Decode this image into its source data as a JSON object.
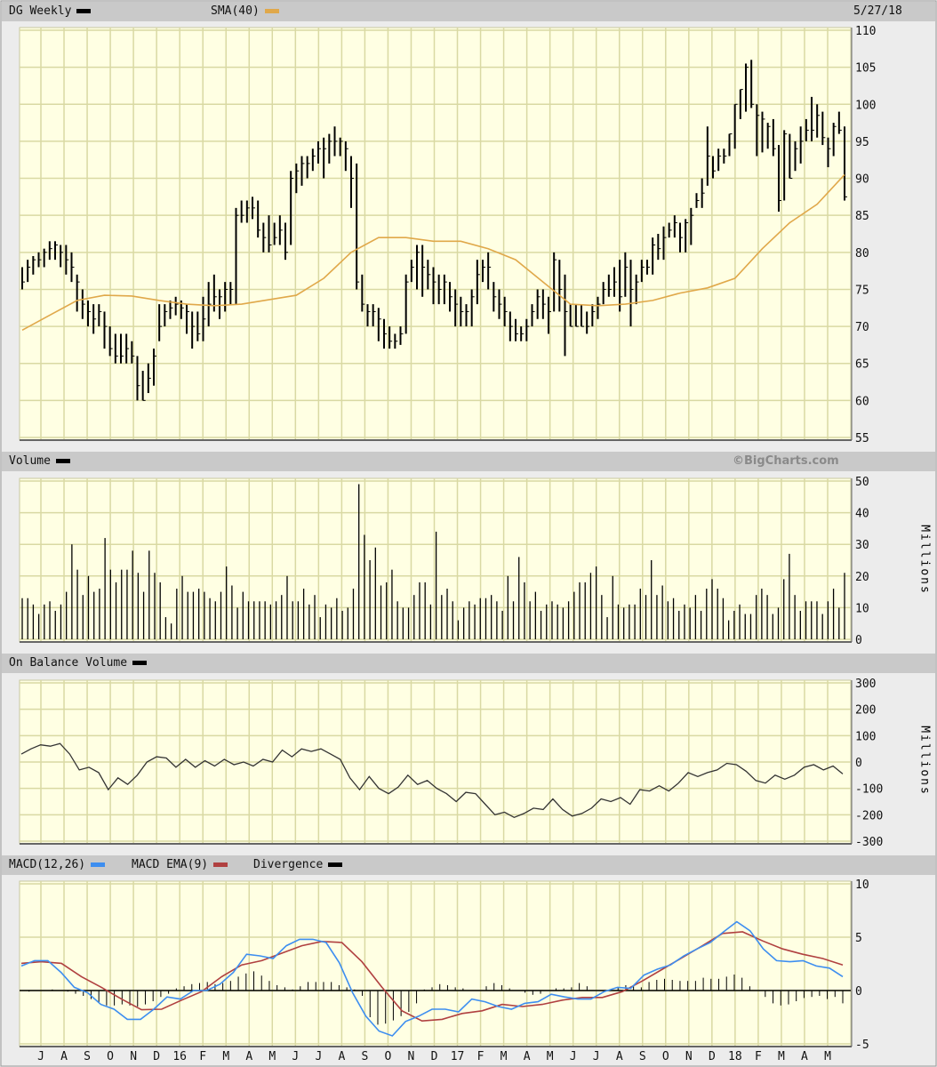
{
  "header": {
    "title": "DG Weekly",
    "sma_label": "SMA(40)",
    "date": "5/27/18"
  },
  "volume_header": {
    "title": "Volume",
    "credit": "©BigCharts.com",
    "unit": "Millions"
  },
  "obv_header": {
    "title": "On Balance Volume",
    "unit": "Millions"
  },
  "macd_header": {
    "macd": "MACD(12,26)",
    "ema": "MACD EMA(9)",
    "divergence": "Divergence"
  },
  "colors": {
    "price": "#000000",
    "sma": "#e0a84a",
    "macd": "#3d8ef0",
    "ema": "#b04040",
    "divergence": "#000000",
    "plot_bg": "#ffffe3",
    "grid": "#d9d9a3"
  },
  "x_ticks": [
    "J",
    "A",
    "S",
    "O",
    "N",
    "D",
    "16",
    "F",
    "M",
    "A",
    "M",
    "J",
    "J",
    "A",
    "S",
    "O",
    "N",
    "D",
    "17",
    "F",
    "M",
    "A",
    "M",
    "J",
    "J",
    "A",
    "S",
    "O",
    "N",
    "D",
    "18",
    "F",
    "M",
    "A",
    "M"
  ],
  "chart_data": [
    {
      "type": "ohlc-bar",
      "title": "DG Weekly",
      "interval": "weekly",
      "ylim": [
        55,
        110
      ],
      "yticks": [
        55,
        60,
        65,
        70,
        75,
        80,
        85,
        90,
        95,
        100,
        105,
        110
      ],
      "grid": true,
      "bars_hlc": [
        [
          78,
          75,
          76
        ],
        [
          79,
          76,
          78
        ],
        [
          79.5,
          77,
          79
        ],
        [
          80,
          78,
          79
        ],
        [
          80.5,
          78,
          80
        ],
        [
          81.5,
          79,
          80.5
        ],
        [
          81.5,
          79,
          81
        ],
        [
          81,
          78,
          80
        ],
        [
          81,
          77,
          79
        ],
        [
          80,
          76,
          78
        ],
        [
          77,
          72,
          76
        ],
        [
          75,
          71,
          73
        ],
        [
          73.5,
          70,
          72
        ],
        [
          73,
          69,
          71
        ],
        [
          73,
          70,
          72
        ],
        [
          72,
          67,
          70
        ],
        [
          70,
          66,
          67
        ],
        [
          69,
          65,
          66
        ],
        [
          69,
          65,
          66
        ],
        [
          69,
          65,
          67
        ],
        [
          68,
          65,
          66
        ],
        [
          66,
          60,
          62
        ],
        [
          64,
          60,
          60
        ],
        [
          65,
          61,
          63
        ],
        [
          67,
          62,
          66
        ],
        [
          73,
          68,
          70
        ],
        [
          73,
          70,
          72
        ],
        [
          73.5,
          71,
          72.5
        ],
        [
          74,
          71.5,
          73
        ],
        [
          73.5,
          71,
          72.5
        ],
        [
          73,
          69,
          72
        ],
        [
          72,
          67,
          70
        ],
        [
          72,
          68,
          69
        ],
        [
          74,
          68,
          71
        ],
        [
          76,
          70,
          73
        ],
        [
          77,
          72,
          74
        ],
        [
          75,
          71,
          74
        ],
        [
          76,
          72,
          75
        ],
        [
          76,
          73,
          75
        ],
        [
          86,
          73,
          85
        ],
        [
          87,
          84,
          85
        ],
        [
          87,
          84,
          86
        ],
        [
          87.5,
          84.5,
          86
        ],
        [
          87,
          82,
          83
        ],
        [
          84,
          80,
          82
        ],
        [
          85,
          80,
          81
        ],
        [
          84,
          81,
          82
        ],
        [
          85,
          81,
          83
        ],
        [
          84,
          79,
          80
        ],
        [
          91,
          81,
          90
        ],
        [
          92,
          88,
          91
        ],
        [
          93,
          89,
          92
        ],
        [
          93,
          90,
          92
        ],
        [
          94,
          91,
          93
        ],
        [
          95,
          92,
          94
        ],
        [
          95.5,
          90,
          94
        ],
        [
          96,
          92,
          95
        ],
        [
          97,
          93,
          95
        ],
        [
          95.5,
          93,
          95
        ],
        [
          95,
          91,
          94
        ],
        [
          93,
          86,
          90
        ],
        [
          92,
          75,
          76
        ],
        [
          77,
          72,
          73
        ],
        [
          73,
          70,
          72
        ],
        [
          73,
          70,
          72
        ],
        [
          72.5,
          68,
          71
        ],
        [
          71,
          67,
          69
        ],
        [
          70,
          67,
          68
        ],
        [
          69,
          67,
          68
        ],
        [
          70,
          67.5,
          69
        ],
        [
          77,
          69,
          76
        ],
        [
          79,
          76,
          78
        ],
        [
          81,
          75,
          80
        ],
        [
          81,
          74,
          78
        ],
        [
          79,
          75,
          77
        ],
        [
          78,
          73,
          76
        ],
        [
          77,
          73,
          75
        ],
        [
          77,
          73,
          76
        ],
        [
          76,
          72,
          74
        ],
        [
          75,
          70,
          73
        ],
        [
          74,
          70,
          72
        ],
        [
          73,
          70,
          72
        ],
        [
          75,
          70,
          74
        ],
        [
          79,
          73,
          77
        ],
        [
          79,
          76,
          78
        ],
        [
          80,
          75,
          78
        ],
        [
          76,
          72,
          74
        ],
        [
          75,
          71,
          73
        ],
        [
          74,
          70,
          72
        ],
        [
          72,
          68,
          70
        ],
        [
          71,
          68,
          69
        ],
        [
          70,
          68,
          69
        ],
        [
          71,
          68,
          70
        ],
        [
          73,
          70,
          72
        ],
        [
          75,
          71,
          74
        ],
        [
          75,
          71,
          73
        ],
        [
          74,
          69,
          72
        ],
        [
          80,
          72,
          79
        ],
        [
          79,
          72,
          75
        ],
        [
          77,
          66,
          72
        ],
        [
          73,
          70,
          70
        ],
        [
          73,
          70,
          70
        ],
        [
          73,
          70,
          70
        ],
        [
          72,
          69,
          70
        ],
        [
          73,
          70,
          72
        ],
        [
          74,
          71,
          73
        ],
        [
          76,
          73,
          75
        ],
        [
          77,
          74,
          75
        ],
        [
          78,
          74,
          76
        ],
        [
          79,
          72,
          74
        ],
        [
          80,
          74,
          78
        ],
        [
          79,
          70,
          75
        ],
        [
          77,
          73,
          76
        ],
        [
          79,
          76,
          78
        ],
        [
          79,
          77,
          78
        ],
        [
          82,
          77,
          81
        ],
        [
          82.5,
          79,
          80.5
        ],
        [
          83.5,
          79,
          82
        ],
        [
          84,
          82,
          83
        ],
        [
          85,
          82,
          84
        ],
        [
          84,
          80,
          82
        ],
        [
          84.5,
          80,
          84
        ],
        [
          86,
          81,
          85
        ],
        [
          88,
          86,
          87
        ],
        [
          90,
          86,
          88
        ],
        [
          97,
          89,
          93
        ],
        [
          93,
          90,
          91
        ],
        [
          94,
          91,
          93
        ],
        [
          94,
          92,
          93
        ],
        [
          96,
          93,
          96
        ],
        [
          100,
          94,
          100
        ],
        [
          102,
          98,
          102
        ],
        [
          105.5,
          99,
          105
        ],
        [
          106,
          99.5,
          100
        ],
        [
          100,
          93,
          98.5
        ],
        [
          99,
          93.5,
          98
        ],
        [
          97.5,
          94,
          97
        ],
        [
          98,
          93,
          94
        ],
        [
          94.5,
          85.5,
          87
        ],
        [
          96.5,
          87,
          96
        ],
        [
          96,
          90,
          90
        ],
        [
          95,
          91,
          94
        ],
        [
          97,
          92,
          95
        ],
        [
          98,
          95,
          96.5
        ],
        [
          101,
          95,
          96.5
        ],
        [
          100,
          95.5,
          98.5
        ],
        [
          99,
          94.5,
          95.5
        ],
        [
          95.5,
          91.5,
          94
        ],
        [
          97.5,
          93,
          97
        ],
        [
          99,
          96,
          96.5
        ],
        [
          97,
          87,
          87.5
        ]
      ],
      "sma40": [
        69.5,
        71.5,
        73.5,
        74.2,
        74.1,
        73.5,
        73,
        72.8,
        73,
        73.6,
        74.2,
        76.5,
        80,
        82,
        82,
        81.5,
        81.5,
        80.5,
        79,
        76,
        73,
        72.8,
        73,
        73.5,
        74.5,
        75.2,
        76.5,
        80.5,
        84,
        86.5,
        90.5
      ]
    },
    {
      "type": "bar",
      "title": "Volume",
      "ylabel": "Millions",
      "ylim": [
        0,
        50
      ],
      "yticks": [
        0,
        10,
        20,
        30,
        40,
        50
      ],
      "values": [
        13,
        13,
        11,
        8,
        11,
        12,
        9,
        11,
        15,
        30,
        22,
        14,
        20,
        15,
        16,
        32,
        22,
        18,
        22,
        22,
        28,
        21,
        15,
        28,
        21,
        18,
        7,
        5,
        16,
        20,
        15,
        15,
        16,
        15,
        13,
        12,
        15,
        23,
        17,
        10,
        15,
        12,
        12,
        12,
        12,
        11,
        12,
        14,
        20,
        12,
        12,
        16,
        11,
        14,
        7,
        11,
        10,
        13,
        9,
        10,
        16,
        49,
        33,
        25,
        29,
        17,
        18,
        22,
        12,
        10,
        10,
        14,
        18,
        18,
        11,
        34,
        14,
        16,
        12,
        6,
        10,
        12,
        11,
        13,
        13,
        14,
        12,
        9,
        20,
        12,
        26,
        18,
        12,
        15,
        9,
        11,
        12,
        11,
        10,
        12,
        15,
        18,
        18,
        21,
        23,
        14,
        7,
        20,
        11,
        10,
        11,
        11,
        16,
        14,
        25,
        14,
        17,
        12,
        13,
        9,
        11,
        10,
        14,
        9,
        16,
        19,
        16,
        13,
        6,
        9,
        11,
        8,
        8,
        14,
        16,
        14,
        8,
        10,
        19,
        27,
        14,
        9,
        12,
        12,
        12,
        8,
        12,
        16,
        10,
        21
      ]
    },
    {
      "type": "line",
      "title": "On Balance Volume",
      "ylabel": "Millions",
      "ylim": [
        -300,
        300
      ],
      "yticks": [
        -300,
        -200,
        -100,
        0,
        100,
        200,
        300
      ],
      "values": [
        30,
        50,
        65,
        60,
        70,
        30,
        -30,
        -20,
        -40,
        -105,
        -60,
        -85,
        -50,
        0,
        20,
        15,
        -20,
        10,
        -20,
        5,
        -15,
        10,
        -10,
        0,
        -15,
        10,
        0,
        45,
        20,
        50,
        40,
        50,
        30,
        10,
        -60,
        -105,
        -55,
        -100,
        -120,
        -95,
        -50,
        -85,
        -70,
        -100,
        -120,
        -150,
        -115,
        -120,
        -160,
        -200,
        -190,
        -210,
        -195,
        -175,
        -180,
        -140,
        -180,
        -205,
        -195,
        -175,
        -140,
        -150,
        -135,
        -160,
        -105,
        -110,
        -90,
        -110,
        -80,
        -40,
        -55,
        -40,
        -30,
        -5,
        -10,
        -35,
        -70,
        -80,
        -50,
        -65,
        -50,
        -20,
        -10,
        -30,
        -15,
        -45
      ]
    },
    {
      "type": "line",
      "title": "MACD(12,26)",
      "ylim": [
        -5,
        10
      ],
      "yticks": [
        -5,
        0,
        5,
        10
      ],
      "series": [
        {
          "name": "MACD(12,26)",
          "values": [
            2.3,
            2.8,
            2.8,
            1.7,
            0.3,
            -0.2,
            -1.3,
            -1.75,
            -2.7,
            -2.7,
            -1.75,
            -0.6,
            -0.8,
            0,
            0,
            0.6,
            1.7,
            3.4,
            3.25,
            3,
            4.2,
            4.8,
            4.8,
            4.5,
            2.6,
            -0.2,
            -2.4,
            -3.8,
            -4.25,
            -2.9,
            -2.4,
            -1.75,
            -1.75,
            -2,
            -0.8,
            -1.05,
            -1.5,
            -1.75,
            -1.2,
            -1.05,
            -0.35,
            -0.6,
            -0.8,
            -0.8,
            -0.1,
            0.3,
            0.2,
            1.45,
            2,
            2.4,
            3.25,
            3.9,
            4.5,
            5.5,
            6.45,
            5.6,
            3.9,
            2.8,
            2.7,
            2.8,
            2.3,
            2.1,
            1.3
          ]
        },
        {
          "name": "MACD EMA(9)",
          "values": [
            2.55,
            2.7,
            2.55,
            1.3,
            0.3,
            -0.8,
            -1.8,
            -1.75,
            -0.9,
            -0.1,
            1.3,
            2.4,
            2.8,
            3.5,
            4.2,
            4.6,
            4.5,
            2.7,
            0.3,
            -1.9,
            -2.85,
            -2.7,
            -2.15,
            -1.9,
            -1.3,
            -1.5,
            -1.3,
            -0.9,
            -0.65,
            -0.65,
            -0.1,
            0.9,
            2,
            3.1,
            4.2,
            5.35,
            5.5,
            4.65,
            3.9,
            3.4,
            3,
            2.4
          ]
        },
        {
          "name": "Divergence",
          "type": "histogram",
          "values": [
            0,
            -0.1,
            0,
            0,
            0.1,
            0,
            -0.1,
            -0.3,
            -0.5,
            -0.8,
            -1.1,
            -1.4,
            -1.4,
            -1.3,
            -1.4,
            -1.5,
            -1.3,
            -1.0,
            -0.6,
            -0.3,
            0.2,
            0.4,
            0.6,
            0.7,
            0.8,
            0.6,
            0.7,
            0.9,
            1.3,
            1.6,
            1.8,
            1.4,
            0.9,
            0.5,
            0.3,
            0.1,
            0.4,
            0.8,
            0.8,
            0.8,
            0.8,
            0.5,
            0.3,
            0.1,
            -0.5,
            -2.5,
            -3.2,
            -3.1,
            -2.8,
            -2.4,
            -2.0,
            -1.2,
            0.1,
            0.3,
            0.6,
            0.5,
            0.3,
            0.2,
            0,
            0,
            0.4,
            0.7,
            0.5,
            0.2,
            0,
            -0.2,
            -0.4,
            -0.3,
            0,
            0.2,
            0.2,
            0.3,
            0.7,
            0.4,
            0,
            0,
            0,
            0.3,
            0.5,
            0.5,
            0.3,
            0.8,
            1.0,
            1.1,
            1.0,
            0.9,
            0.9,
            0.9,
            1.2,
            1.1,
            1.1,
            1.3,
            1.5,
            1.2,
            0.4,
            0,
            -0.6,
            -1.2,
            -1.4,
            -1.3,
            -1.0,
            -0.7,
            -0.6,
            -0.5,
            -0.8,
            -0.6,
            -1.2
          ]
        }
      ]
    }
  ]
}
